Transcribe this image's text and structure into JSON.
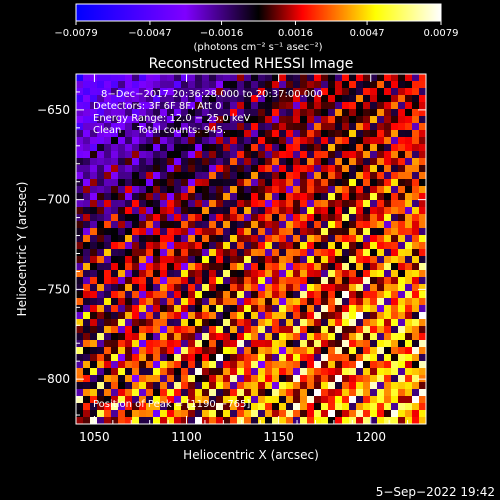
{
  "chart_data": {
    "type": "heatmap",
    "title": "Reconstructed RHESSI Image",
    "xlabel": "Heliocentric X (arcsec)",
    "ylabel": "Heliocentric Y (arcsec)",
    "xlim": [
      1040,
      1230
    ],
    "ylim": [
      -825,
      -630
    ],
    "x_ticks": [
      1050,
      1100,
      1150,
      1200
    ],
    "y_ticks": [
      -650,
      -700,
      -750,
      -800
    ],
    "x_tick_labels": [
      "1050",
      "1100",
      "1150",
      "1200"
    ],
    "y_tick_labels": [
      "−650",
      "−700",
      "−750",
      "−800"
    ],
    "colorbar": {
      "min": -0.0079,
      "max": 0.0079,
      "ticks": [
        -0.0079,
        -0.0047,
        -0.0016,
        0.0016,
        0.0047,
        0.0079
      ],
      "tick_labels": [
        "−0.0079",
        "−0.0047",
        "−0.0016",
        "0.0016",
        "0.0047",
        "0.0079"
      ],
      "unit_label": "(photons cm⁻² s⁻¹ asec⁻²)",
      "colormap": [
        "#0000ff",
        "#7f00ff",
        "#000000",
        "#ff0000",
        "#ffff00",
        "#ffffff"
      ]
    },
    "annotations": [
      "8−Dec−2017 20:36:28.000 to 20:37:00.000",
      "Detectors: 3F 6F 8F, Att 0",
      "Energy Range: 12.0 − 25.0 keV",
      "Clean     Total counts: 945."
    ],
    "peak_label": "Position of Peak = [1190,−765]",
    "peak": {
      "x": 1190,
      "y": -765
    },
    "footer_date": "5−Sep−2022 19:42",
    "grid": false
  }
}
